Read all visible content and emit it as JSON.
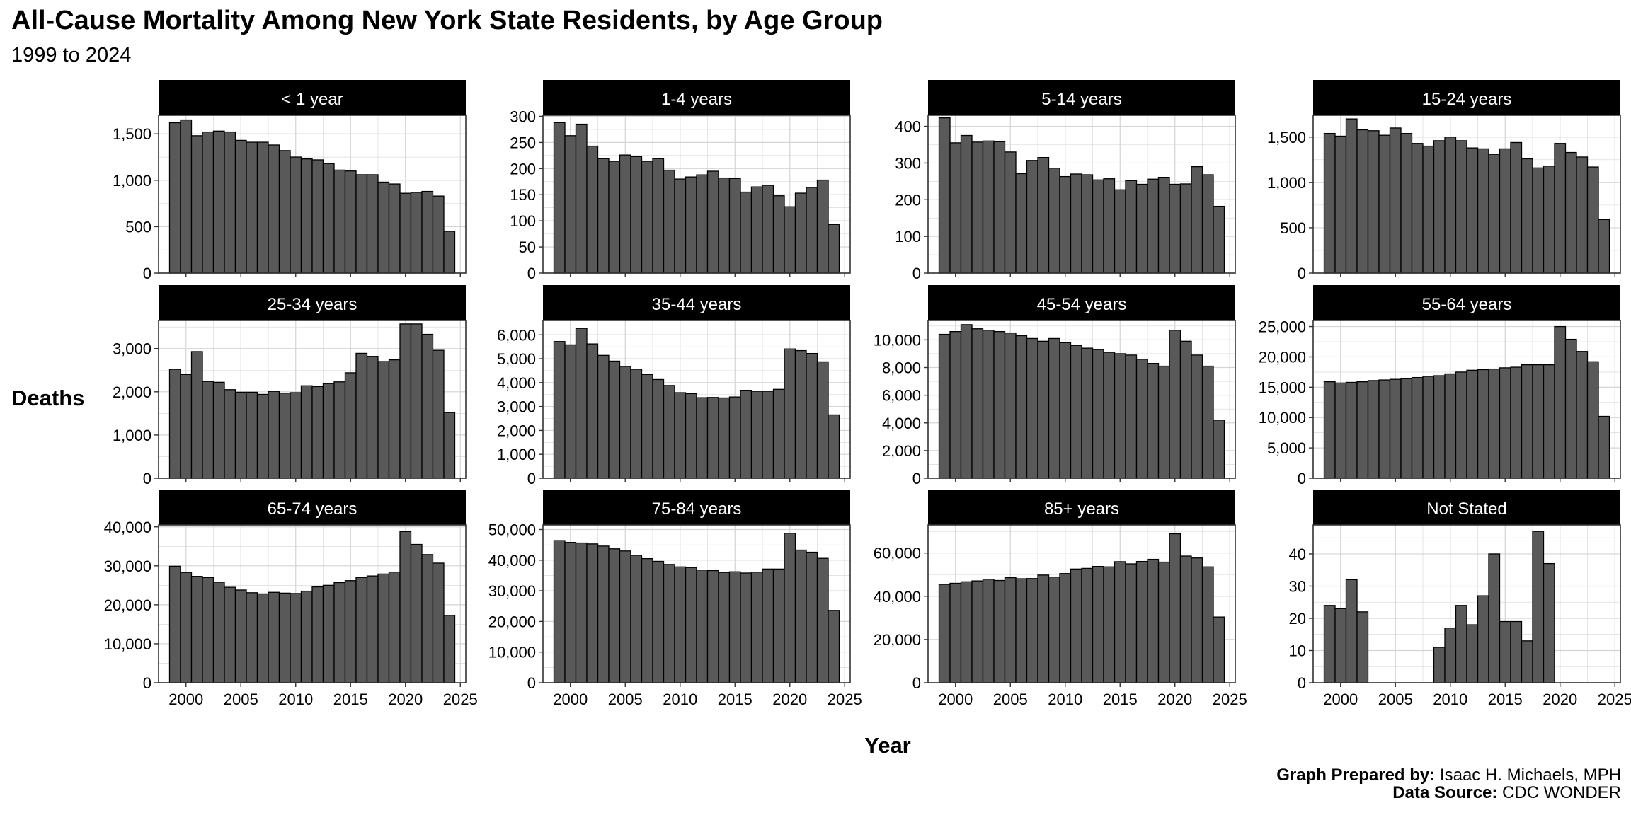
{
  "title": "All-Cause Mortality Among New York State Residents, by Age Group",
  "subtitle": "1999 to 2024",
  "credit": {
    "prepared_label": "Graph Prepared by:",
    "prepared_value": "Isaac H. Michaels, MPH",
    "source_label": "Data Source:",
    "source_value": "CDC WONDER"
  },
  "colors": {
    "bar": "#595959",
    "strip": "#000000",
    "strip_text": "#ffffff",
    "grid": "#d4d4d4"
  },
  "chart_data": {
    "type": "bar",
    "layout": "facet grid 3 rows x 4 columns, independent y axes, shared x axis",
    "xlabel": "Year",
    "ylabel": "Deaths",
    "xlim": [
      1997.5,
      2025.5
    ],
    "x_ticks": [
      2000,
      2005,
      2010,
      2015,
      2020,
      2025
    ],
    "x": [
      1999,
      2000,
      2001,
      2002,
      2003,
      2004,
      2005,
      2006,
      2007,
      2008,
      2009,
      2010,
      2011,
      2012,
      2013,
      2014,
      2015,
      2016,
      2017,
      2018,
      2019,
      2020,
      2021,
      2022,
      2023,
      2024
    ],
    "panels": [
      {
        "label": "< 1 year",
        "ylim": [
          0,
          1700
        ],
        "ticks": [
          0,
          500,
          1000,
          1500
        ],
        "tick_labels": [
          "0",
          "500",
          "1,000",
          "1,500"
        ],
        "values": [
          1620,
          1650,
          1480,
          1520,
          1530,
          1520,
          1430,
          1410,
          1410,
          1380,
          1320,
          1250,
          1230,
          1220,
          1180,
          1110,
          1100,
          1060,
          1060,
          980,
          960,
          860,
          870,
          880,
          830,
          450
        ]
      },
      {
        "label": "1-4 years",
        "ylim": [
          0,
          302
        ],
        "ticks": [
          0,
          50,
          100,
          150,
          200,
          250,
          300
        ],
        "tick_labels": [
          "0",
          "50",
          "100",
          "150",
          "200",
          "250",
          "300"
        ],
        "values": [
          288,
          263,
          285,
          243,
          219,
          214,
          226,
          223,
          214,
          219,
          197,
          180,
          184,
          188,
          195,
          182,
          181,
          155,
          165,
          168,
          148,
          127,
          153,
          164,
          178,
          93
        ]
      },
      {
        "label": "5-14 years",
        "ylim": [
          0,
          430
        ],
        "ticks": [
          0,
          100,
          200,
          300,
          400
        ],
        "tick_labels": [
          "0",
          "100",
          "200",
          "300",
          "400"
        ],
        "values": [
          423,
          355,
          375,
          357,
          360,
          358,
          330,
          271,
          307,
          315,
          286,
          263,
          270,
          268,
          254,
          257,
          227,
          252,
          242,
          256,
          261,
          242,
          243,
          290,
          268,
          182
        ]
      },
      {
        "label": "15-24 years",
        "ylim": [
          0,
          1740
        ],
        "ticks": [
          0,
          500,
          1000,
          1500
        ],
        "tick_labels": [
          "0",
          "500",
          "1,000",
          "1,500"
        ],
        "values": [
          1540,
          1510,
          1700,
          1580,
          1570,
          1520,
          1600,
          1540,
          1430,
          1400,
          1460,
          1500,
          1460,
          1380,
          1370,
          1310,
          1370,
          1440,
          1260,
          1160,
          1180,
          1430,
          1330,
          1280,
          1170,
          590
        ]
      },
      {
        "label": "25-34 years",
        "ylim": [
          0,
          3650
        ],
        "ticks": [
          0,
          1000,
          2000,
          3000
        ],
        "tick_labels": [
          "0",
          "1,000",
          "2,000",
          "3,000"
        ],
        "values": [
          2520,
          2400,
          2930,
          2240,
          2220,
          2050,
          1990,
          1990,
          1940,
          2010,
          1970,
          1980,
          2140,
          2120,
          2190,
          2230,
          2440,
          2890,
          2820,
          2700,
          2740,
          3570,
          3570,
          3330,
          2960,
          1520
        ]
      },
      {
        "label": "35-44 years",
        "ylim": [
          0,
          6600
        ],
        "ticks": [
          0,
          1000,
          2000,
          3000,
          4000,
          5000,
          6000
        ],
        "tick_labels": [
          "0",
          "1,000",
          "2,000",
          "3,000",
          "4,000",
          "5,000",
          "6,000"
        ],
        "values": [
          5720,
          5580,
          6270,
          5620,
          5140,
          4900,
          4680,
          4560,
          4340,
          4130,
          3880,
          3580,
          3540,
          3370,
          3380,
          3360,
          3400,
          3680,
          3640,
          3640,
          3720,
          5410,
          5340,
          5220,
          4870,
          2650
        ]
      },
      {
        "label": "45-54 years",
        "ylim": [
          0,
          11400
        ],
        "ticks": [
          0,
          2000,
          4000,
          6000,
          8000,
          10000
        ],
        "tick_labels": [
          "0",
          "2,000",
          "4,000",
          "6,000",
          "8,000",
          "10,000"
        ],
        "values": [
          10400,
          10600,
          11100,
          10800,
          10700,
          10600,
          10500,
          10300,
          10100,
          9900,
          10100,
          9800,
          9600,
          9400,
          9300,
          9100,
          9000,
          8900,
          8600,
          8300,
          8100,
          10700,
          9900,
          8900,
          8100,
          4200
        ]
      },
      {
        "label": "55-64 years",
        "ylim": [
          0,
          26000
        ],
        "ticks": [
          0,
          5000,
          10000,
          15000,
          20000,
          25000
        ],
        "tick_labels": [
          "0",
          "5,000",
          "10,000",
          "15,000",
          "20,000",
          "25,000"
        ],
        "values": [
          15900,
          15700,
          15800,
          15900,
          16100,
          16200,
          16300,
          16400,
          16600,
          16800,
          16900,
          17200,
          17500,
          17800,
          17900,
          18000,
          18200,
          18300,
          18700,
          18700,
          18700,
          25000,
          22900,
          20900,
          19200,
          10200
        ]
      },
      {
        "label": "65-74 years",
        "ylim": [
          0,
          40500
        ],
        "ticks": [
          0,
          10000,
          20000,
          30000,
          40000
        ],
        "tick_labels": [
          "0",
          "10,000",
          "20,000",
          "30,000",
          "40,000"
        ],
        "values": [
          29900,
          28300,
          27300,
          27000,
          25800,
          24500,
          23800,
          23100,
          22800,
          23200,
          23000,
          22900,
          23500,
          24600,
          25000,
          25700,
          26200,
          27000,
          27400,
          27900,
          28400,
          38800,
          35500,
          32900,
          30700,
          17300
        ]
      },
      {
        "label": "75-84 years",
        "ylim": [
          0,
          51500
        ],
        "ticks": [
          0,
          10000,
          20000,
          30000,
          40000,
          50000
        ],
        "tick_labels": [
          "0",
          "10,000",
          "20,000",
          "30,000",
          "40,000",
          "50,000"
        ],
        "values": [
          46400,
          45800,
          45600,
          45300,
          44600,
          43700,
          43000,
          41600,
          40500,
          39600,
          38600,
          37800,
          37600,
          36800,
          36600,
          36000,
          36200,
          35800,
          36100,
          37100,
          37100,
          48800,
          43300,
          42600,
          40600,
          23600
        ]
      },
      {
        "label": "85+ years",
        "ylim": [
          0,
          73000
        ],
        "ticks": [
          0,
          20000,
          40000,
          60000
        ],
        "tick_labels": [
          "0",
          "20,000",
          "40,000",
          "60,000"
        ],
        "values": [
          45500,
          46000,
          46700,
          47100,
          47900,
          47300,
          48600,
          48100,
          48200,
          49800,
          48900,
          50500,
          52600,
          52900,
          53800,
          53600,
          56000,
          55000,
          56100,
          57100,
          55800,
          68900,
          58600,
          57700,
          53600,
          30400
        ]
      },
      {
        "label": "Not Stated",
        "ylim": [
          0,
          49
        ],
        "ticks": [
          0,
          10,
          20,
          30,
          40
        ],
        "tick_labels": [
          "0",
          "10",
          "20",
          "30",
          "40"
        ],
        "values": [
          24,
          23,
          32,
          22,
          null,
          null,
          null,
          null,
          null,
          null,
          11,
          17,
          24,
          18,
          27,
          40,
          19,
          19,
          13,
          47,
          37,
          null,
          null,
          null,
          null,
          null
        ]
      }
    ]
  }
}
